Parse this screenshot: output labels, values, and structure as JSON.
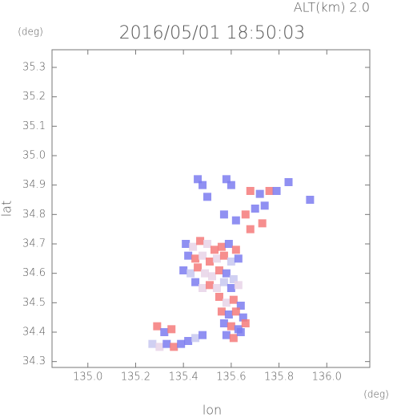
{
  "chart_data": {
    "type": "scatter",
    "title": "2016/05/01 18:50:03",
    "subtitle": "ALT(km) 2.0",
    "y_axis_label": "lat",
    "y_unit": "(deg)",
    "x_axis_label": "lon",
    "x_unit": "(deg)",
    "xlim": [
      134.85,
      136.18
    ],
    "ylim": [
      34.28,
      35.36
    ],
    "xticks": [
      {
        "value": 135,
        "label": "135.0"
      },
      135.2,
      135.4,
      135.6,
      135.8,
      {
        "value": 136,
        "label": "136.0"
      }
    ],
    "yticks": [
      34.3,
      34.4,
      34.5,
      34.6,
      34.7,
      34.8,
      34.9,
      {
        "value": 35,
        "label": "35.0"
      },
      35.1,
      35.2,
      35.3
    ],
    "x": [
      135.46,
      135.48,
      135.5,
      135.58,
      135.6,
      135.68,
      135.72,
      135.76,
      135.79,
      135.84,
      135.93,
      135.57,
      135.62,
      135.66,
      135.7,
      135.74,
      135.68,
      135.73,
      135.41,
      135.44,
      135.47,
      135.5,
      135.53,
      135.56,
      135.59,
      135.62,
      135.42,
      135.45,
      135.48,
      135.51,
      135.54,
      135.57,
      135.6,
      135.63,
      135.4,
      135.43,
      135.46,
      135.49,
      135.52,
      135.55,
      135.58,
      135.61,
      135.45,
      135.48,
      135.51,
      135.54,
      135.57,
      135.6,
      135.63,
      135.55,
      135.58,
      135.61,
      135.64,
      135.56,
      135.59,
      135.62,
      135.65,
      135.57,
      135.6,
      135.63,
      135.66,
      135.58,
      135.61,
      135.64,
      135.27,
      135.3,
      135.33,
      135.36,
      135.39,
      135.42,
      135.45,
      135.48,
      135.29,
      135.32,
      135.35
    ],
    "values": [
      34.92,
      34.9,
      34.86,
      34.92,
      34.9,
      34.88,
      34.87,
      34.88,
      34.88,
      34.91,
      34.85,
      34.8,
      34.78,
      34.8,
      34.82,
      34.83,
      34.75,
      34.77,
      34.7,
      34.69,
      34.71,
      34.7,
      34.68,
      34.69,
      34.7,
      34.68,
      34.66,
      34.65,
      34.66,
      34.64,
      34.65,
      34.66,
      34.64,
      34.65,
      34.61,
      34.6,
      34.62,
      34.6,
      34.59,
      34.61,
      34.6,
      34.58,
      34.57,
      34.55,
      34.56,
      34.55,
      34.57,
      34.55,
      34.56,
      34.52,
      34.5,
      34.51,
      34.49,
      34.47,
      34.46,
      34.47,
      34.45,
      34.43,
      34.42,
      34.41,
      34.43,
      34.39,
      34.38,
      34.4,
      34.36,
      34.35,
      34.36,
      34.35,
      34.36,
      34.37,
      34.38,
      34.39,
      34.42,
      34.4,
      34.41
    ],
    "colors": [
      "#7c7cf0",
      "#7c7cf0",
      "#7c7cf0",
      "#7c7cf0",
      "#7c7cf0",
      "#f47a7a",
      "#7c7cf0",
      "#f47a7a",
      "#7c7cf0",
      "#7c7cf0",
      "#7c7cf0",
      "#7c7cf0",
      "#7c7cf0",
      "#f47a7a",
      "#7c7cf0",
      "#7c7cf0",
      "#f47a7a",
      "#f47a7a",
      "#7c7cf0",
      "#e8d4e8",
      "#f47a7a",
      "#e8d4e8",
      "#f47a7a",
      "#f47a7a",
      "#7c7cf0",
      "#f47a7a",
      "#7c7cf0",
      "#f47a7a",
      "#e8d4e8",
      "#f47a7a",
      "#e8d4e8",
      "#f47a7a",
      "#c8c8f0",
      "#7c7cf0",
      "#7c7cf0",
      "#c8c8f0",
      "#f47a7a",
      "#e8d4e8",
      "#e8d4e8",
      "#f47a7a",
      "#7c7cf0",
      "#c8c8f0",
      "#7c7cf0",
      "#e8d4e8",
      "#f47a7a",
      "#e8d4e8",
      "#c8c8f0",
      "#7c7cf0",
      "#e8d4e8",
      "#f47a7a",
      "#e8d4e8",
      "#f47a7a",
      "#7c7cf0",
      "#f47a7a",
      "#7c7cf0",
      "#f47a7a",
      "#7c7cf0",
      "#7c7cf0",
      "#f47a7a",
      "#7c7cf0",
      "#f47a7a",
      "#7c7cf0",
      "#f47a7a",
      "#7c7cf0",
      "#c8c8f0",
      "#e8d4e8",
      "#7c7cf0",
      "#f47a7a",
      "#7c7cf0",
      "#7c7cf0",
      "#c8c8f0",
      "#7c7cf0",
      "#f47a7a",
      "#7c7cf0",
      "#f47a7a"
    ]
  }
}
